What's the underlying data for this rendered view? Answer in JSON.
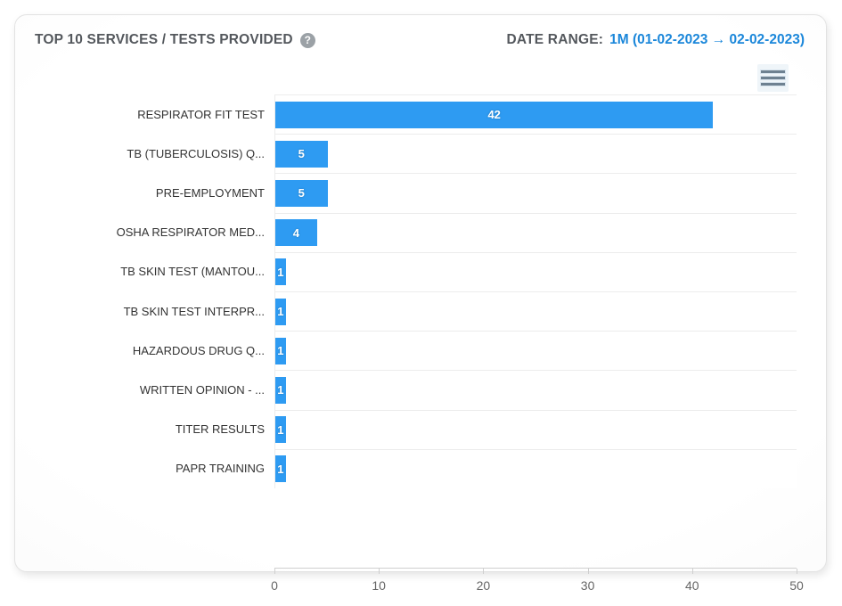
{
  "header": {
    "title": "TOP 10 SERVICES / TESTS PROVIDED",
    "help_icon_glyph": "?",
    "date_range_label": "DATE RANGE:",
    "date_range_value": "1M (01-02-2023 → 02-02-2023)"
  },
  "colors": {
    "bar": "#2e9bf2",
    "date_range_value": "#1b87da",
    "title_text": "#54585d",
    "category_text": "#333333",
    "axis_text": "#666666",
    "grid_line": "#ececec",
    "axis_line": "#cfcfcf",
    "menu_icon": "#6e8191",
    "help_icon_bg": "#9ba1a6"
  },
  "context_menu": {
    "icon": "hamburger-menu-icon"
  },
  "chart_data": {
    "type": "bar",
    "orientation": "horizontal",
    "title": "TOP 10 SERVICES / TESTS PROVIDED",
    "categories": [
      "RESPIRATOR FIT TEST",
      "TB (TUBERCULOSIS) Q...",
      "PRE-EMPLOYMENT",
      "OSHA RESPIRATOR MED...",
      "TB SKIN TEST (MANTOU...",
      "TB SKIN TEST INTERPR...",
      "HAZARDOUS DRUG Q...",
      "WRITTEN OPINION - ...",
      "TITER RESULTS",
      "PAPR TRAINING"
    ],
    "values": [
      42,
      5,
      5,
      4,
      1,
      1,
      1,
      1,
      1,
      1
    ],
    "data_labels": [
      "42",
      "5",
      "5",
      "4",
      "1",
      "1",
      "1",
      "1",
      "1",
      "1"
    ],
    "xlabel": "",
    "ylabel": "",
    "xlim": [
      0,
      50
    ],
    "xticks": [
      0,
      10,
      20,
      30,
      40,
      50
    ],
    "grid": "category-separators-only",
    "legend": "none",
    "data_label_style": "inside-center-white-bold"
  }
}
